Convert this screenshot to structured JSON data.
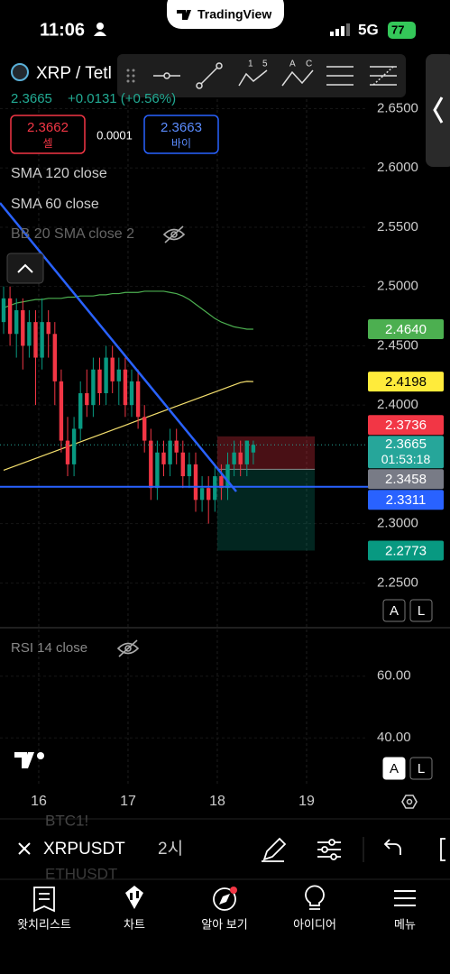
{
  "status_bar": {
    "time": "11:06",
    "brand": "TradingView",
    "network": "5G",
    "battery": "77"
  },
  "toolbar": {
    "letters": [
      "1",
      "5",
      "A",
      "C"
    ]
  },
  "symbol": {
    "name": "XRP / Tetl",
    "last": "2.3665",
    "change": "+0.0131 (+0.56%)"
  },
  "trade": {
    "sell_price": "2.3662",
    "sell_label": "셀",
    "spread": "0.0001",
    "buy_price": "2.3663",
    "buy_label": "바이"
  },
  "indicators": [
    "SMA 120 close",
    "SMA 60 close",
    "BB 20 SMA close 2"
  ],
  "price_pane": {
    "ylim": [
      2.213,
      2.696
    ],
    "yticks": [
      {
        "value": 2.65,
        "label": "2.6500"
      },
      {
        "value": 2.6,
        "label": "2.6000"
      },
      {
        "value": 2.55,
        "label": "2.5500"
      },
      {
        "value": 2.5,
        "label": "2.5000"
      },
      {
        "value": 2.45,
        "label": "2.4500"
      },
      {
        "value": 2.4,
        "label": "2.4000"
      },
      {
        "value": 2.3,
        "label": "2.3000"
      },
      {
        "value": 2.25,
        "label": "2.2500"
      }
    ],
    "up_color": "#089981",
    "down_color": "#f23645",
    "candles": [
      {
        "o": 2.47,
        "h": 2.5,
        "l": 2.46,
        "c": 2.49
      },
      {
        "o": 2.49,
        "h": 2.5,
        "l": 2.45,
        "c": 2.46
      },
      {
        "o": 2.46,
        "h": 2.49,
        "l": 2.44,
        "c": 2.48
      },
      {
        "o": 2.48,
        "h": 2.49,
        "l": 2.43,
        "c": 2.45
      },
      {
        "o": 2.45,
        "h": 2.48,
        "l": 2.44,
        "c": 2.47
      },
      {
        "o": 2.47,
        "h": 2.48,
        "l": 2.4,
        "c": 2.44
      },
      {
        "o": 2.44,
        "h": 2.49,
        "l": 2.43,
        "c": 2.47
      },
      {
        "o": 2.47,
        "h": 2.48,
        "l": 2.44,
        "c": 2.46
      },
      {
        "o": 2.46,
        "h": 2.47,
        "l": 2.4,
        "c": 2.42
      },
      {
        "o": 2.42,
        "h": 2.43,
        "l": 2.36,
        "c": 2.37
      },
      {
        "o": 2.37,
        "h": 2.39,
        "l": 2.34,
        "c": 2.35
      },
      {
        "o": 2.35,
        "h": 2.39,
        "l": 2.34,
        "c": 2.38
      },
      {
        "o": 2.38,
        "h": 2.42,
        "l": 2.37,
        "c": 2.41
      },
      {
        "o": 2.41,
        "h": 2.43,
        "l": 2.39,
        "c": 2.4
      },
      {
        "o": 2.4,
        "h": 2.44,
        "l": 2.39,
        "c": 2.43
      },
      {
        "o": 2.43,
        "h": 2.44,
        "l": 2.4,
        "c": 2.41
      },
      {
        "o": 2.41,
        "h": 2.45,
        "l": 2.4,
        "c": 2.44
      },
      {
        "o": 2.44,
        "h": 2.45,
        "l": 2.41,
        "c": 2.42
      },
      {
        "o": 2.42,
        "h": 2.44,
        "l": 2.4,
        "c": 2.43
      },
      {
        "o": 2.43,
        "h": 2.44,
        "l": 2.39,
        "c": 2.4
      },
      {
        "o": 2.4,
        "h": 2.43,
        "l": 2.39,
        "c": 2.42
      },
      {
        "o": 2.42,
        "h": 2.43,
        "l": 2.38,
        "c": 2.39
      },
      {
        "o": 2.39,
        "h": 2.4,
        "l": 2.36,
        "c": 2.37
      },
      {
        "o": 2.37,
        "h": 2.38,
        "l": 2.32,
        "c": 2.33
      },
      {
        "o": 2.33,
        "h": 2.37,
        "l": 2.32,
        "c": 2.36
      },
      {
        "o": 2.36,
        "h": 2.37,
        "l": 2.34,
        "c": 2.35
      },
      {
        "o": 2.35,
        "h": 2.38,
        "l": 2.34,
        "c": 2.37
      },
      {
        "o": 2.37,
        "h": 2.38,
        "l": 2.35,
        "c": 2.36
      },
      {
        "o": 2.36,
        "h": 2.37,
        "l": 2.33,
        "c": 2.34
      },
      {
        "o": 2.34,
        "h": 2.36,
        "l": 2.33,
        "c": 2.35
      },
      {
        "o": 2.35,
        "h": 2.36,
        "l": 2.31,
        "c": 2.32
      },
      {
        "o": 2.32,
        "h": 2.34,
        "l": 2.31,
        "c": 2.33
      },
      {
        "o": 2.33,
        "h": 2.34,
        "l": 2.3,
        "c": 2.32
      },
      {
        "o": 2.32,
        "h": 2.35,
        "l": 2.31,
        "c": 2.34
      },
      {
        "o": 2.34,
        "h": 2.35,
        "l": 2.32,
        "c": 2.33
      },
      {
        "o": 2.33,
        "h": 2.36,
        "l": 2.32,
        "c": 2.35
      },
      {
        "o": 2.35,
        "h": 2.37,
        "l": 2.34,
        "c": 2.36
      },
      {
        "o": 2.36,
        "h": 2.37,
        "l": 2.34,
        "c": 2.35
      },
      {
        "o": 2.35,
        "h": 2.37,
        "l": 2.34,
        "c": 2.37
      },
      {
        "o": 2.36,
        "h": 2.37,
        "l": 2.35,
        "c": 2.3665
      }
    ],
    "sma60": {
      "color": "#f5e06e",
      "values": [
        2.345,
        2.347,
        2.349,
        2.351,
        2.353,
        2.355,
        2.357,
        2.359,
        2.361,
        2.363,
        2.365,
        2.367,
        2.369,
        2.371,
        2.373,
        2.375,
        2.377,
        2.379,
        2.381,
        2.383,
        2.385,
        2.387,
        2.389,
        2.391,
        2.393,
        2.395,
        2.397,
        2.399,
        2.401,
        2.403,
        2.405,
        2.407,
        2.409,
        2.411,
        2.413,
        2.415,
        2.417,
        2.419,
        2.42,
        2.4198
      ]
    },
    "sma120": {
      "color": "#4caf50",
      "values": [
        2.482,
        2.484,
        2.486,
        2.487,
        2.488,
        2.489,
        2.489,
        2.49,
        2.49,
        2.49,
        2.491,
        2.491,
        2.492,
        2.492,
        2.492,
        2.493,
        2.493,
        2.494,
        2.494,
        2.495,
        2.495,
        2.495,
        2.496,
        2.496,
        2.496,
        2.496,
        2.495,
        2.494,
        2.492,
        2.489,
        2.485,
        2.481,
        2.477,
        2.473,
        2.47,
        2.468,
        2.466,
        2.465,
        2.464,
        2.464
      ]
    },
    "badges": [
      {
        "value": 2.464,
        "label": "2.4640",
        "color": "#4caf50",
        "text_color": "#ffffff"
      },
      {
        "value": 2.4198,
        "label": "2.4198",
        "color": "#ffeb3b",
        "text_color": "#000000"
      },
      {
        "value": 2.3736,
        "label": "2.3736",
        "color": "#f23645",
        "text_color": "#ffffff"
      },
      {
        "value": 2.3665,
        "label": "2.3665",
        "countdown": "01:53:18",
        "color": "#26a69a",
        "text_color": "#ffffff"
      },
      {
        "value": 2.3458,
        "label": "2.3458",
        "color": "#787b86",
        "text_color": "#ffffff"
      },
      {
        "value": 2.3311,
        "label": "2.3311",
        "color": "#2962ff",
        "text_color": "#ffffff"
      },
      {
        "value": 2.2773,
        "label": "2.2773",
        "color": "#089981",
        "text_color": "#ffffff"
      }
    ]
  },
  "rsi_pane": {
    "label": "RSI 14 close",
    "ylim": [
      24.9,
      75.7
    ],
    "yticks": [
      {
        "value": 60,
        "label": "60.00"
      },
      {
        "value": 40,
        "label": "40.00"
      }
    ]
  },
  "xaxis": {
    "xlim": [
      15.566,
      19.687
    ],
    "xticks": [
      16,
      17,
      18,
      19
    ]
  },
  "scale_buttons": [
    "A",
    "L"
  ],
  "bottom_bar": {
    "symbol": "XRPUSDT",
    "interval": "2시",
    "ghost": [
      "BTC1!",
      "ETHUSDT"
    ]
  },
  "nav": [
    "왓치리스트",
    "차트",
    "알아 보기",
    "아이디어",
    "메뉴"
  ]
}
